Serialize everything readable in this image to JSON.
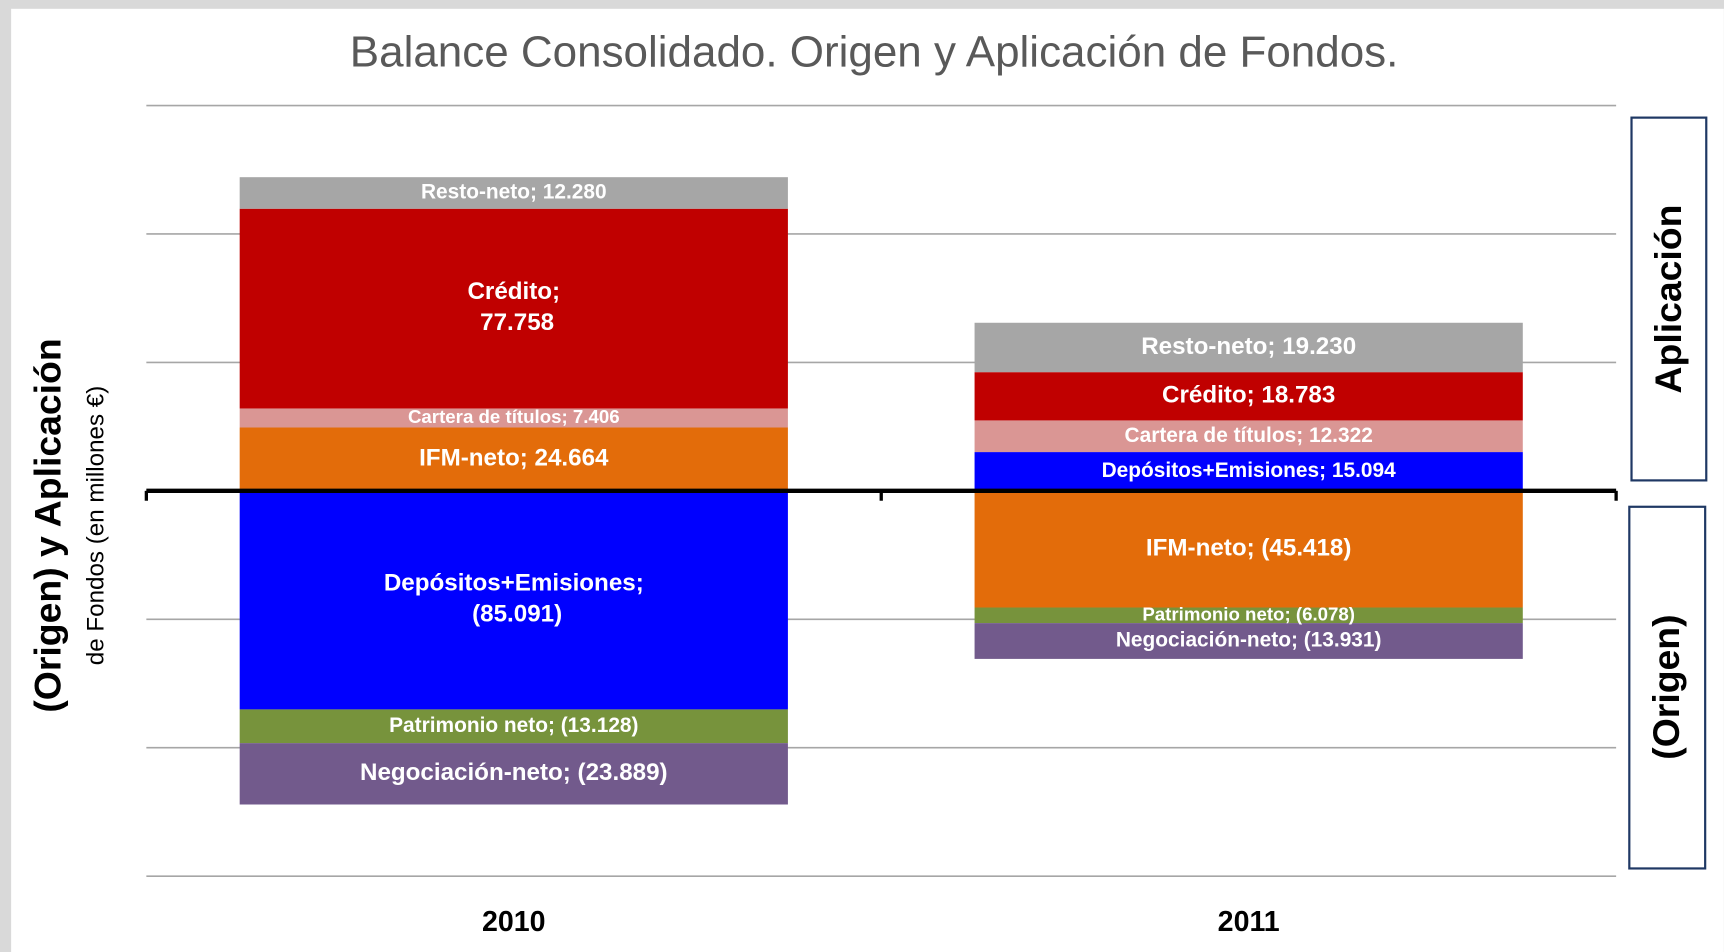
{
  "chart_data": {
    "type": "stacked_bar",
    "title": "Balance Consolidado. Origen y Aplicación de Fondos.",
    "y_label": "(Origen)  y Aplicación",
    "y_label_sub": "de Fondos (en millones €)",
    "annotations": [
      "Aplicación",
      "(Origen)"
    ],
    "categories": [
      "2010",
      "2011"
    ],
    "ylim": [
      -150000,
      150000
    ],
    "yticks": [
      -150000,
      -100000,
      -50000,
      0,
      50000,
      100000,
      150000
    ],
    "grid": true,
    "series": [
      {
        "color": "#0000ff",
        "values": [
          -85091,
          15094
        ],
        "value_labels": [
          "Depósitos+Emisiones; (85.091)",
          "Depósitos+Emisiones; 15.094"
        ]
      },
      {
        "color": "#e36c0a",
        "values": [
          24664,
          -45418
        ],
        "value_labels": [
          "IFM-neto; 24.664",
          "IFM-neto; (45.418)"
        ]
      },
      {
        "color": "#da9694",
        "values": [
          7406,
          12322
        ],
        "value_labels": [
          "Cartera de títulos; 7.406",
          "Cartera de títulos; 12.322"
        ]
      },
      {
        "color": "#c00000",
        "values": [
          77758,
          18783
        ],
        "value_labels": [
          "Crédito; 77.758",
          "Crédito; 18.783"
        ]
      },
      {
        "color": "#a6a6a6",
        "values": [
          12280,
          19230
        ],
        "value_labels": [
          "Resto-neto; 12.280",
          "Resto-neto; 19.230"
        ]
      },
      {
        "color": "#77933c",
        "values": [
          -13128,
          -6078
        ],
        "value_labels": [
          "Patrimonio neto; (13.128)",
          "Patrimonio neto; (6.078)"
        ]
      },
      {
        "color": "#725a8c",
        "values": [
          -23889,
          -13931
        ],
        "value_labels": [
          "Negociación-neto; (23.889)",
          "Negociación-neto; (13.931)"
        ]
      }
    ]
  }
}
